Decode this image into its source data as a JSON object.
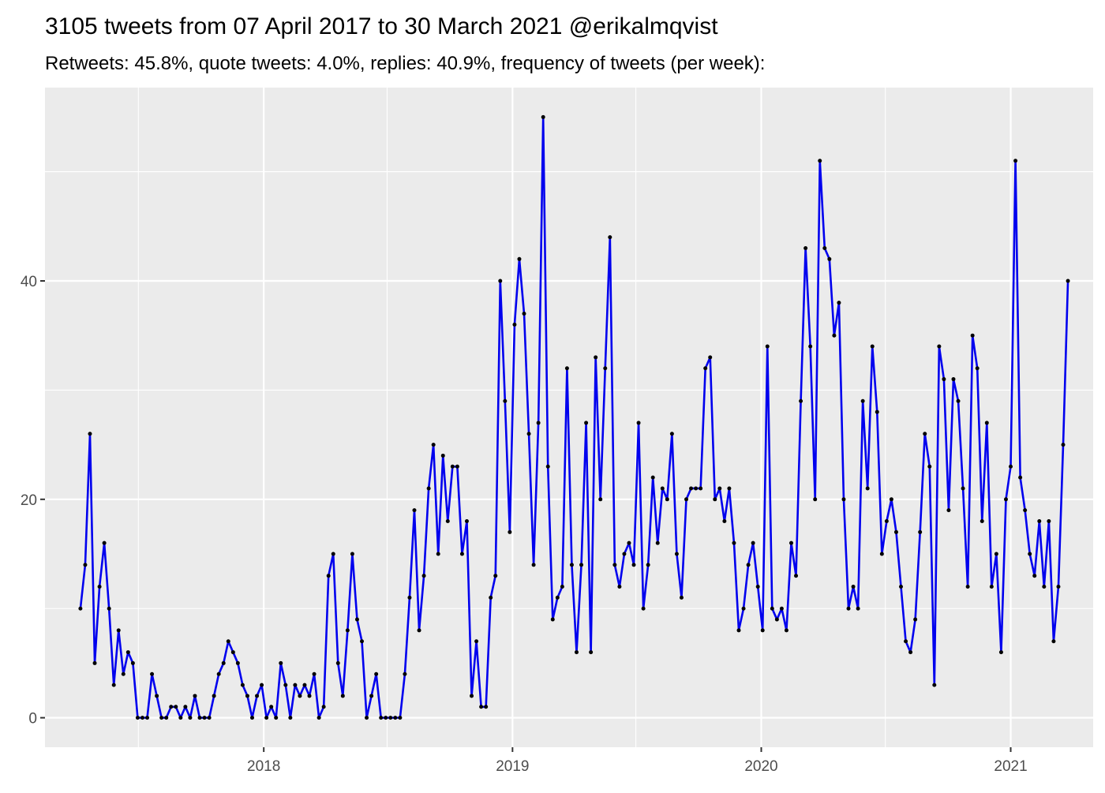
{
  "chart_data": {
    "type": "line",
    "title": "3105 tweets from 07 April 2017 to 30 March 2021 @erikalmqvist",
    "subtitle": "Retweets: 45.8%, quote tweets: 4.0%, replies: 40.9%, frequency of tweets (per week):",
    "xlabel": "",
    "ylabel": "",
    "x_ticks": [
      "2018",
      "2019",
      "2020",
      "2021"
    ],
    "y_ticks": [
      0,
      20,
      40
    ],
    "xlim": [
      "2017-02-14",
      "2021-05-02"
    ],
    "ylim": [
      -2.7,
      57.7
    ],
    "grid": true,
    "legend": "none",
    "colors": {
      "line": "#0000ee",
      "point": "#000000",
      "panel": "#ebebeb",
      "grid": "#ffffff"
    },
    "series": [
      {
        "x": [
          "2017-04-07",
          "2017-04-14",
          "2017-04-21",
          "2017-04-28",
          "2017-05-05",
          "2017-05-12",
          "2017-05-19",
          "2017-05-26",
          "2017-06-02",
          "2017-06-09",
          "2017-06-16",
          "2017-06-23",
          "2017-06-30",
          "2017-07-07",
          "2017-07-14",
          "2017-07-21",
          "2017-07-28",
          "2017-08-04",
          "2017-08-11",
          "2017-08-18",
          "2017-08-25",
          "2017-09-01",
          "2017-09-08",
          "2017-09-15",
          "2017-09-22",
          "2017-09-29",
          "2017-10-06",
          "2017-10-13",
          "2017-10-20",
          "2017-10-27",
          "2017-11-03",
          "2017-11-10",
          "2017-11-17",
          "2017-11-24",
          "2017-12-01",
          "2017-12-08",
          "2017-12-15",
          "2017-12-22",
          "2017-12-29",
          "2018-01-05",
          "2018-01-12",
          "2018-01-19",
          "2018-01-26",
          "2018-02-02",
          "2018-02-09",
          "2018-02-16",
          "2018-02-23",
          "2018-03-02",
          "2018-03-09",
          "2018-03-16",
          "2018-03-23",
          "2018-03-30",
          "2018-04-06",
          "2018-04-13",
          "2018-04-20",
          "2018-04-27",
          "2018-05-04",
          "2018-05-11",
          "2018-05-18",
          "2018-05-25",
          "2018-06-01",
          "2018-06-08",
          "2018-06-15",
          "2018-06-22",
          "2018-06-29",
          "2018-07-06",
          "2018-07-13",
          "2018-07-20",
          "2018-07-27",
          "2018-08-03",
          "2018-08-10",
          "2018-08-17",
          "2018-08-24",
          "2018-08-31",
          "2018-09-07",
          "2018-09-14",
          "2018-09-21",
          "2018-09-28",
          "2018-10-05",
          "2018-10-12",
          "2018-10-19",
          "2018-10-26",
          "2018-11-02",
          "2018-11-09",
          "2018-11-16",
          "2018-11-23",
          "2018-11-30",
          "2018-12-07",
          "2018-12-14",
          "2018-12-21",
          "2018-12-28",
          "2019-01-04",
          "2019-01-11",
          "2019-01-18",
          "2019-01-25",
          "2019-02-01",
          "2019-02-08",
          "2019-02-15",
          "2019-02-22",
          "2019-03-01",
          "2019-03-08",
          "2019-03-15",
          "2019-03-22",
          "2019-03-29",
          "2019-04-05",
          "2019-04-12",
          "2019-04-19",
          "2019-04-26",
          "2019-05-03",
          "2019-05-10",
          "2019-05-17",
          "2019-05-24",
          "2019-05-31",
          "2019-06-07",
          "2019-06-14",
          "2019-06-21",
          "2019-06-28",
          "2019-07-05",
          "2019-07-12",
          "2019-07-19",
          "2019-07-26",
          "2019-08-02",
          "2019-08-09",
          "2019-08-16",
          "2019-08-23",
          "2019-08-30",
          "2019-09-06",
          "2019-09-13",
          "2019-09-20",
          "2019-09-27",
          "2019-10-04",
          "2019-10-11",
          "2019-10-18",
          "2019-10-25",
          "2019-11-01",
          "2019-11-08",
          "2019-11-15",
          "2019-11-22",
          "2019-11-29",
          "2019-12-06",
          "2019-12-13",
          "2019-12-20",
          "2019-12-27",
          "2020-01-03",
          "2020-01-10",
          "2020-01-17",
          "2020-01-24",
          "2020-01-31",
          "2020-02-07",
          "2020-02-14",
          "2020-02-21",
          "2020-02-28",
          "2020-03-06",
          "2020-03-13",
          "2020-03-20",
          "2020-03-27",
          "2020-04-03",
          "2020-04-10",
          "2020-04-17",
          "2020-04-24",
          "2020-05-01",
          "2020-05-08",
          "2020-05-15",
          "2020-05-22",
          "2020-05-29",
          "2020-06-05",
          "2020-06-12",
          "2020-06-19",
          "2020-06-26",
          "2020-07-03",
          "2020-07-10",
          "2020-07-17",
          "2020-07-24",
          "2020-07-31",
          "2020-08-07",
          "2020-08-14",
          "2020-08-21",
          "2020-08-28",
          "2020-09-04",
          "2020-09-11",
          "2020-09-18",
          "2020-09-25",
          "2020-10-02",
          "2020-10-09",
          "2020-10-16",
          "2020-10-23",
          "2020-10-30",
          "2020-11-06",
          "2020-11-13",
          "2020-11-20",
          "2020-11-27",
          "2020-12-04",
          "2020-12-11",
          "2020-12-18",
          "2020-12-25",
          "2021-01-01",
          "2021-01-08",
          "2021-01-15",
          "2021-01-22",
          "2021-01-29",
          "2021-02-05",
          "2021-02-12",
          "2021-02-19",
          "2021-02-26",
          "2021-03-05",
          "2021-03-12",
          "2021-03-19",
          "2021-03-26"
        ],
        "values": [
          10,
          14,
          26,
          5,
          12,
          16,
          10,
          3,
          8,
          4,
          6,
          5,
          0,
          0,
          0,
          4,
          2,
          0,
          0,
          1,
          1,
          0,
          1,
          0,
          2,
          0,
          0,
          0,
          2,
          4,
          5,
          7,
          6,
          5,
          3,
          2,
          0,
          2,
          3,
          0,
          1,
          0,
          5,
          3,
          0,
          3,
          2,
          3,
          2,
          4,
          0,
          1,
          13,
          15,
          5,
          2,
          8,
          15,
          9,
          7,
          0,
          2,
          4,
          0,
          0,
          0,
          0,
          0,
          4,
          11,
          19,
          8,
          13,
          21,
          25,
          15,
          24,
          18,
          23,
          23,
          15,
          18,
          2,
          7,
          1,
          1,
          11,
          13,
          40,
          29,
          17,
          36,
          42,
          37,
          26,
          14,
          27,
          55,
          23,
          9,
          11,
          12,
          32,
          14,
          6,
          14,
          27,
          6,
          33,
          20,
          32,
          44,
          14,
          12,
          15,
          16,
          14,
          27,
          10,
          14,
          22,
          16,
          21,
          20,
          26,
          15,
          11,
          20,
          21,
          21,
          21,
          32,
          33,
          20,
          21,
          18,
          21,
          16,
          8,
          10,
          14,
          16,
          12,
          8,
          34,
          10,
          9,
          10,
          8,
          16,
          13,
          29,
          43,
          34,
          20,
          51,
          43,
          42,
          35,
          38,
          20,
          10,
          12,
          10,
          29,
          21,
          34,
          28,
          15,
          18,
          20,
          17,
          12,
          7,
          6,
          9,
          17,
          26,
          23,
          3,
          34,
          31,
          19,
          31,
          29,
          21,
          12,
          35,
          32,
          18,
          27,
          12,
          15,
          6,
          20,
          23,
          51,
          22,
          19,
          15,
          13,
          18,
          12,
          18,
          7,
          12,
          25,
          40
        ]
      }
    ]
  }
}
